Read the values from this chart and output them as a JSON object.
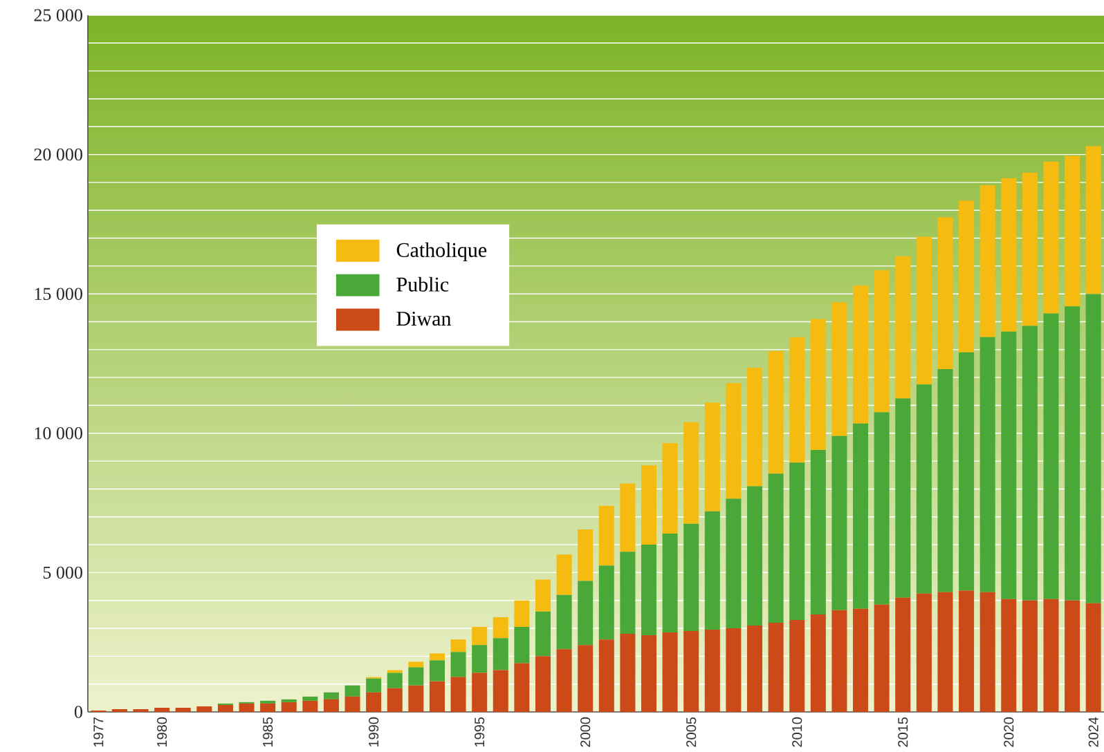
{
  "chart_data": {
    "type": "bar",
    "stacked": true,
    "categories": [
      "1977",
      null,
      null,
      "1980",
      null,
      null,
      null,
      null,
      "1985",
      null,
      null,
      null,
      null,
      "1990",
      null,
      null,
      null,
      null,
      "1995",
      null,
      null,
      null,
      null,
      "2000",
      null,
      null,
      null,
      null,
      "2005",
      null,
      null,
      null,
      null,
      "2010",
      null,
      null,
      null,
      null,
      "2015",
      null,
      null,
      null,
      null,
      "2020",
      null,
      null,
      null,
      "2024"
    ],
    "series": [
      {
        "name": "Diwan",
        "color": "#cc4a17",
        "values": [
          50,
          100,
          100,
          150,
          150,
          200,
          250,
          300,
          300,
          350,
          400,
          450,
          550,
          700,
          850,
          950,
          1100,
          1250,
          1400,
          1500,
          1750,
          2000,
          2250,
          2400,
          2600,
          2800,
          2750,
          2850,
          2900,
          2950,
          3000,
          3100,
          3200,
          3300,
          3500,
          3650,
          3700,
          3850,
          4100,
          4250,
          4300,
          4350,
          4300,
          4050,
          4000,
          4050,
          4000,
          3900
        ]
      },
      {
        "name": "Public",
        "color": "#4aa838",
        "values": [
          0,
          0,
          0,
          0,
          0,
          0,
          50,
          50,
          100,
          100,
          150,
          250,
          400,
          500,
          550,
          650,
          750,
          900,
          1000,
          1150,
          1300,
          1600,
          1950,
          2300,
          2650,
          2950,
          3250,
          3550,
          3850,
          4250,
          4650,
          5000,
          5350,
          5650,
          5900,
          6250,
          6650,
          6900,
          7150,
          7500,
          8000,
          8550,
          9150,
          9600,
          9850,
          10250,
          10550,
          11100
        ]
      },
      {
        "name": "Catholique",
        "color": "#f5bb10",
        "values": [
          0,
          0,
          0,
          0,
          0,
          0,
          0,
          0,
          0,
          0,
          0,
          0,
          0,
          50,
          100,
          200,
          250,
          450,
          650,
          750,
          950,
          1150,
          1450,
          1850,
          2150,
          2450,
          2850,
          3250,
          3650,
          3900,
          4150,
          4250,
          4400,
          4500,
          4700,
          4800,
          4950,
          5100,
          5100,
          5300,
          5450,
          5450,
          5450,
          5500,
          5500,
          5450,
          5400,
          5300
        ]
      }
    ],
    "ylim": [
      0,
      25000
    ],
    "yticks": [
      0,
      {
        "value": 1000,
        "label": null
      },
      {
        "value": 2000,
        "label": null
      },
      {
        "value": 3000,
        "label": null
      },
      {
        "value": 4000,
        "label": null
      },
      {
        "value": 5000,
        "label": "5 000"
      },
      {
        "value": 6000,
        "label": null
      },
      {
        "value": 7000,
        "label": null
      },
      {
        "value": 8000,
        "label": null
      },
      {
        "value": 9000,
        "label": null
      },
      {
        "value": 10000,
        "label": "10 000"
      },
      {
        "value": 11000,
        "label": null
      },
      {
        "value": 12000,
        "label": null
      },
      {
        "value": 13000,
        "label": null
      },
      {
        "value": 14000,
        "label": null
      },
      {
        "value": 15000,
        "label": "15 000"
      },
      {
        "value": 16000,
        "label": null
      },
      {
        "value": 17000,
        "label": null
      },
      {
        "value": 18000,
        "label": null
      },
      {
        "value": 19000,
        "label": null
      },
      {
        "value": 20000,
        "label": "20 000"
      },
      {
        "value": 21000,
        "label": null
      },
      {
        "value": 22000,
        "label": null
      },
      {
        "value": 23000,
        "label": null
      },
      {
        "value": 24000,
        "label": null
      },
      {
        "value": 25000,
        "label": "25 000"
      }
    ],
    "grid": "y",
    "legend": "top left"
  }
}
